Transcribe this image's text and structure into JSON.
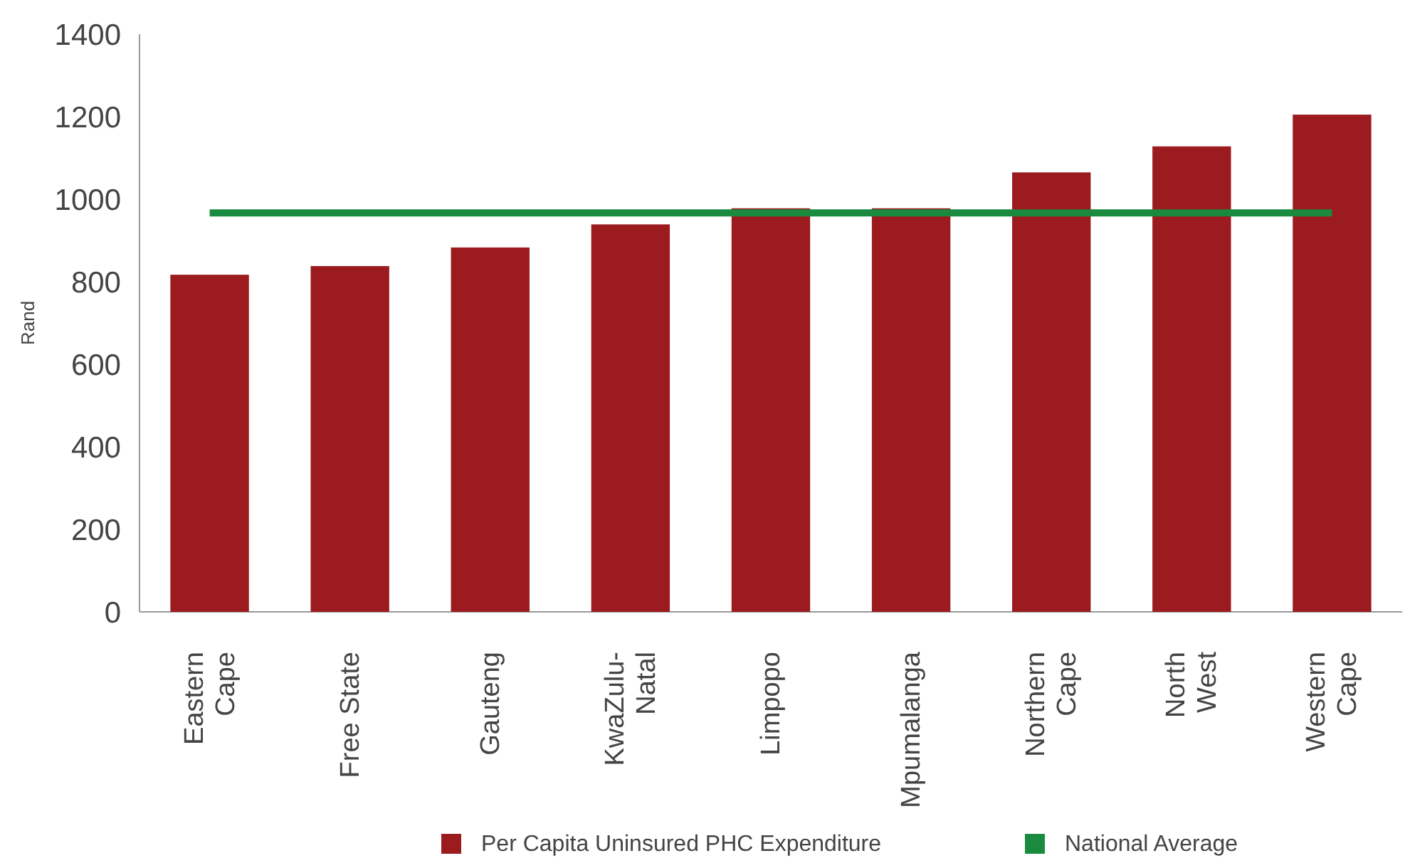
{
  "chart_data": {
    "type": "bar",
    "ylabel": "Rand",
    "categories": [
      "Eastern\nCape",
      "Free State",
      "Gauteng",
      "KwaZulu-\nNatal",
      "Limpopo",
      "Mpumalanga",
      "Northern\nCape",
      "North\nWest",
      "Western\nCape"
    ],
    "series": [
      {
        "name": "Per Capita Uninsured PHC Expenditure",
        "color": "#9b1b1f",
        "values": [
          817,
          838,
          883,
          939,
          978,
          978,
          1065,
          1128,
          1205
        ]
      },
      {
        "name": "National Average",
        "type": "line",
        "color": "#1a8a3e",
        "values": [
          967,
          967,
          967,
          967,
          967,
          967,
          967,
          967,
          967
        ]
      }
    ],
    "ylim": [
      0,
      1400
    ],
    "yticks": [
      0,
      200,
      400,
      600,
      800,
      1000,
      1200,
      1400
    ],
    "grid": false,
    "legend": "bottom"
  }
}
